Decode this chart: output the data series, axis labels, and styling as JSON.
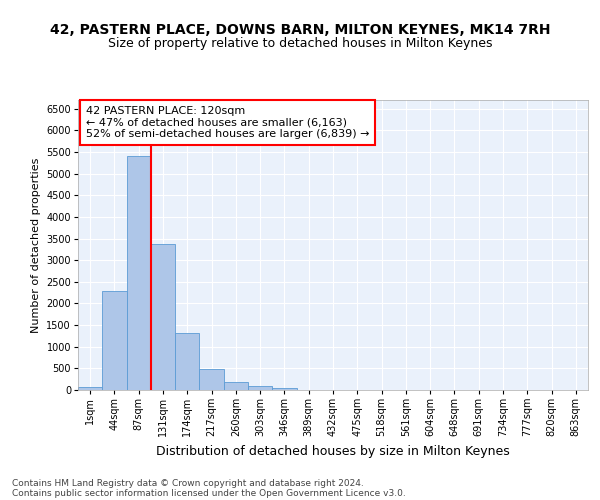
{
  "title1": "42, PASTERN PLACE, DOWNS BARN, MILTON KEYNES, MK14 7RH",
  "title2": "Size of property relative to detached houses in Milton Keynes",
  "xlabel": "Distribution of detached houses by size in Milton Keynes",
  "ylabel": "Number of detached properties",
  "footer1": "Contains HM Land Registry data © Crown copyright and database right 2024.",
  "footer2": "Contains public sector information licensed under the Open Government Licence v3.0.",
  "bar_categories": [
    "1sqm",
    "44sqm",
    "87sqm",
    "131sqm",
    "174sqm",
    "217sqm",
    "260sqm",
    "303sqm",
    "346sqm",
    "389sqm",
    "432sqm",
    "475sqm",
    "518sqm",
    "561sqm",
    "604sqm",
    "648sqm",
    "691sqm",
    "734sqm",
    "777sqm",
    "820sqm",
    "863sqm"
  ],
  "bar_values": [
    75,
    2280,
    5400,
    3380,
    1310,
    480,
    190,
    85,
    55,
    0,
    0,
    0,
    0,
    0,
    0,
    0,
    0,
    0,
    0,
    0,
    0
  ],
  "bar_color": "#aec6e8",
  "bar_edge_color": "#5b9bd5",
  "vline_x_idx": 2,
  "vline_color": "red",
  "annotation_title": "42 PASTERN PLACE: 120sqm",
  "annotation_line1": "← 47% of detached houses are smaller (6,163)",
  "annotation_line2": "52% of semi-detached houses are larger (6,839) →",
  "ylim": [
    0,
    6700
  ],
  "yticks": [
    0,
    500,
    1000,
    1500,
    2000,
    2500,
    3000,
    3500,
    4000,
    4500,
    5000,
    5500,
    6000,
    6500
  ],
  "bg_color": "#eaf1fb",
  "grid_color": "#ffffff",
  "title1_fontsize": 10,
  "title2_fontsize": 9,
  "xlabel_fontsize": 9,
  "ylabel_fontsize": 8,
  "tick_fontsize": 7,
  "annotation_fontsize": 8,
  "footer_fontsize": 6.5
}
